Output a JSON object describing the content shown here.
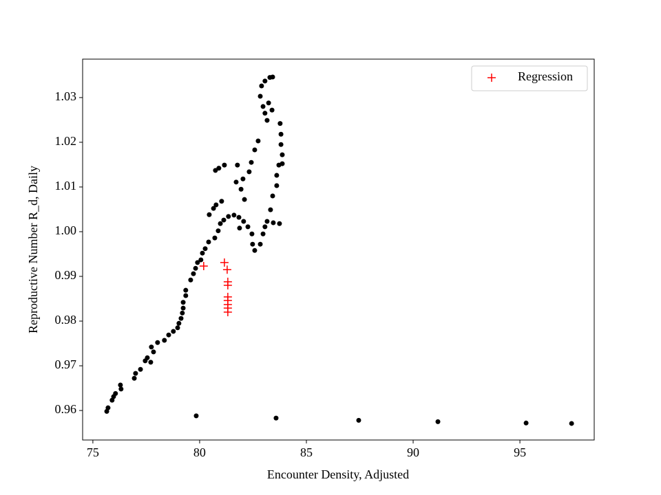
{
  "chart_data": {
    "type": "scatter",
    "xlabel": "Encounter Density, Adjusted",
    "ylabel": "Reproductive Number R_d, Daily",
    "xlim": [
      74.52,
      98.48
    ],
    "ylim": [
      0.9534,
      1.0386
    ],
    "xticks": [
      75,
      80,
      85,
      90,
      95
    ],
    "yticks": [
      0.96,
      0.97,
      0.98,
      0.99,
      {
        "value": 1,
        "label": "1.00"
      },
      1.01,
      1.02,
      1.03
    ],
    "legend": "upper right",
    "series": [
      {
        "color": "#000000",
        "marker": "dot",
        "x": [
          75.65,
          75.71,
          75.9,
          75.97,
          76.06,
          76.29,
          76.32,
          76.94,
          77.0,
          77.23,
          77.45,
          77.55,
          77.71,
          77.74,
          77.84,
          78.03,
          78.35,
          78.55,
          78.77,
          78.97,
          79.03,
          79.13,
          79.19,
          79.23,
          79.23,
          79.35,
          79.35,
          79.58,
          79.71,
          79.81,
          79.9,
          80.06,
          80.13,
          80.26,
          80.42,
          80.71,
          80.87,
          80.97,
          81.13,
          81.35,
          81.61,
          81.84,
          82.06,
          82.26,
          82.45,
          82.48,
          82.58,
          82.84,
          82.97,
          83.06,
          83.16,
          83.45,
          83.74,
          83.32,
          83.42,
          83.61,
          83.61,
          83.71,
          83.87,
          83.87,
          83.81,
          83.81,
          83.77,
          83.39,
          83.23,
          83.16,
          83.06,
          82.97,
          82.84,
          82.9,
          83.06,
          83.29,
          83.42,
          82.74,
          82.58,
          82.42,
          82.32,
          82.03,
          81.77,
          81.71,
          81.94,
          82.1,
          81.16,
          80.9,
          80.74,
          81.03,
          80.77,
          80.65,
          80.45,
          81.87,
          79.84,
          83.58,
          87.45,
          91.16,
          95.29,
          97.42
        ],
        "values": [
          0.9598,
          0.9606,
          0.9623,
          0.9631,
          0.9638,
          0.9657,
          0.9648,
          0.9672,
          0.9683,
          0.9692,
          0.9711,
          0.9718,
          0.9708,
          0.9742,
          0.9731,
          0.9752,
          0.9757,
          0.9769,
          0.9777,
          0.9785,
          0.9795,
          0.9806,
          0.9818,
          0.9829,
          0.9842,
          0.9857,
          0.9869,
          0.9892,
          0.9906,
          0.9918,
          0.9931,
          0.9937,
          0.9952,
          0.9962,
          0.9977,
          0.9986,
          1.0002,
          1.0018,
          1.0026,
          1.0034,
          1.0037,
          1.0032,
          1.0023,
          1.0011,
          0.9995,
          0.9972,
          0.9958,
          0.9972,
          0.9995,
          1.0011,
          1.0023,
          1.002,
          1.0018,
          1.0049,
          1.008,
          1.0103,
          1.0126,
          1.0149,
          1.0152,
          1.0172,
          1.0195,
          1.0218,
          1.0242,
          1.0272,
          1.0288,
          1.0249,
          1.0265,
          1.028,
          1.0303,
          1.0326,
          1.0337,
          1.0345,
          1.0346,
          1.0203,
          1.0183,
          1.0155,
          1.0134,
          1.0118,
          1.0149,
          1.0111,
          1.0095,
          1.0072,
          1.0149,
          1.0142,
          1.0137,
          1.0068,
          1.006,
          1.0052,
          1.0038,
          1.0008,
          0.9588,
          0.9583,
          0.9578,
          0.9575,
          0.9572,
          0.9571
        ]
      },
      {
        "name": "Regression",
        "color": "#ff0000",
        "marker": "plus",
        "x": [
          80.19,
          81.16,
          81.29,
          81.32,
          81.32,
          81.32,
          81.32,
          81.32,
          81.32,
          81.32
        ],
        "values": [
          0.9923,
          0.9931,
          0.9915,
          0.9888,
          0.988,
          0.9854,
          0.9846,
          0.9837,
          0.9829,
          0.982
        ]
      }
    ]
  }
}
